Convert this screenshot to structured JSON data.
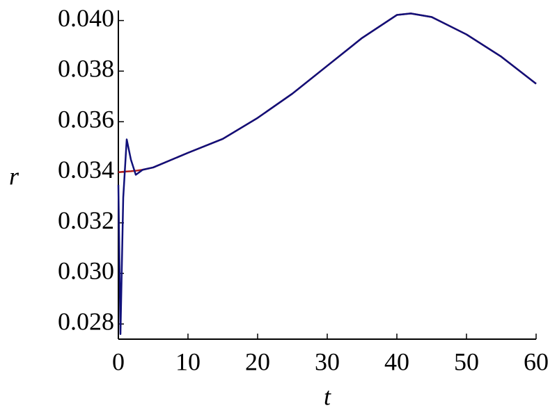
{
  "chart_data": {
    "type": "line",
    "x_label": "t",
    "y_label": "r",
    "x": [
      0,
      0.3,
      0.7,
      1.2,
      1.8,
      2.5,
      3.5,
      5,
      10,
      15,
      20,
      25,
      30,
      35,
      40,
      42,
      45,
      50,
      55,
      60
    ],
    "series": [
      {
        "color": "#b01c1c",
        "values": [
          0.034,
          0.03401,
          0.03402,
          0.03403,
          0.03404,
          0.03406,
          0.0341,
          0.03419,
          0.03477,
          0.03532,
          0.03615,
          0.03711,
          0.03821,
          0.03931,
          0.04022,
          0.04028,
          0.04014,
          0.03945,
          0.03857,
          0.0375
        ]
      },
      {
        "color": "#10107a",
        "values": [
          0.0335,
          0.0276,
          0.033,
          0.0353,
          0.0345,
          0.0339,
          0.0341,
          0.03419,
          0.03477,
          0.03532,
          0.03615,
          0.03711,
          0.03821,
          0.03931,
          0.04022,
          0.04028,
          0.04014,
          0.03945,
          0.03857,
          0.0375
        ]
      }
    ],
    "xlim": [
      0,
      60
    ],
    "xticks": [
      0,
      10,
      20,
      30,
      40,
      50,
      60
    ],
    "ylim": [
      0.0274,
      0.0404
    ],
    "yticks": [
      0.028,
      {
        "value": 0.03,
        "label": "0.030"
      },
      0.032,
      0.034,
      0.036,
      0.038,
      {
        "value": 0.04,
        "label": "0.040"
      }
    ]
  }
}
